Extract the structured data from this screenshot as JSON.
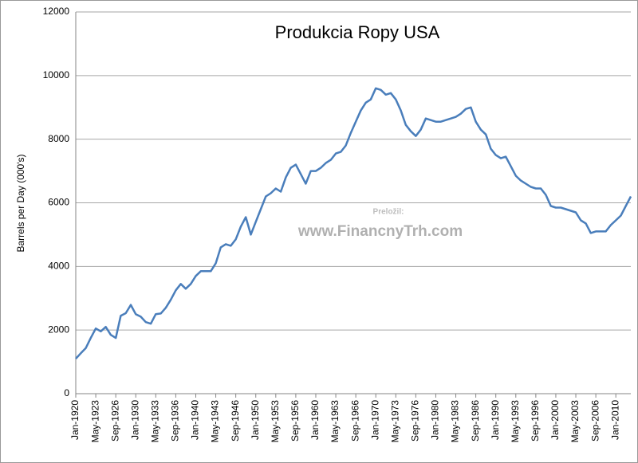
{
  "chart_data": {
    "type": "line",
    "title": "Produkcia Ropy USA",
    "y_label": "Barrels per Day (000's)",
    "annotations": [
      "Preložil:",
      "www.FinancnyTrh.com"
    ],
    "categories": [
      "Jan-1920",
      null,
      null,
      null,
      "May-1923",
      null,
      null,
      null,
      "Sep-1926",
      null,
      null,
      null,
      "Jan-1930",
      null,
      null,
      null,
      "May-1933",
      null,
      null,
      null,
      "Sep-1936",
      null,
      null,
      null,
      "Jan-1940",
      null,
      null,
      null,
      "May-1943",
      null,
      null,
      null,
      "Sep-1946",
      null,
      null,
      null,
      "Jan-1950",
      null,
      null,
      null,
      "May-1953",
      null,
      null,
      null,
      "Sep-1956",
      null,
      null,
      null,
      "Jan-1960",
      null,
      null,
      null,
      "May-1963",
      null,
      null,
      null,
      "Sep-1966",
      null,
      null,
      null,
      "Jan-1970",
      null,
      null,
      null,
      "May-1973",
      null,
      null,
      null,
      "Sep-1976",
      null,
      null,
      null,
      "Jan-1980",
      null,
      null,
      null,
      "May-1983",
      null,
      null,
      null,
      "Sep-1986",
      null,
      null,
      null,
      "Jan-1990",
      null,
      null,
      null,
      "May-1993",
      null,
      null,
      null,
      "Sep-1996",
      null,
      null,
      null,
      "Jan-2000",
      null,
      null,
      null,
      "May-2003",
      null,
      null,
      null,
      "Sep-2006",
      null,
      null,
      null,
      "Jan-2010",
      null,
      null,
      null
    ],
    "series": [
      {
        "color": "#4a7ebb",
        "values": [
          1100,
          1270,
          1430,
          1750,
          2050,
          1960,
          2100,
          1850,
          1750,
          2450,
          2530,
          2790,
          2500,
          2420,
          2250,
          2200,
          2500,
          2520,
          2700,
          2950,
          3250,
          3450,
          3300,
          3450,
          3700,
          3850,
          3850,
          3850,
          4100,
          4600,
          4700,
          4650,
          4850,
          5250,
          5550,
          5000,
          5400,
          5800,
          6200,
          6300,
          6450,
          6350,
          6800,
          7100,
          7200,
          6900,
          6600,
          7000,
          7000,
          7100,
          7250,
          7350,
          7550,
          7600,
          7800,
          8200,
          8550,
          8900,
          9150,
          9250,
          9600,
          9550,
          9400,
          9450,
          9250,
          8900,
          8450,
          8250,
          8100,
          8300,
          8650,
          8600,
          8550,
          8550,
          8600,
          8650,
          8700,
          8800,
          8950,
          9000,
          8550,
          8300,
          8150,
          7700,
          7500,
          7400,
          7450,
          7150,
          6850,
          6700,
          6600,
          6500,
          6450,
          6450,
          6250,
          5900,
          5850,
          5850,
          5800,
          5750,
          5700,
          5450,
          5350,
          5050,
          5100,
          5100,
          5100,
          5300,
          5450,
          5600,
          5900,
          6200
        ]
      }
    ],
    "ylim": [
      0,
      12000
    ],
    "yticks": [
      0,
      2000,
      4000,
      6000,
      8000,
      10000,
      12000
    ],
    "grid": true
  }
}
